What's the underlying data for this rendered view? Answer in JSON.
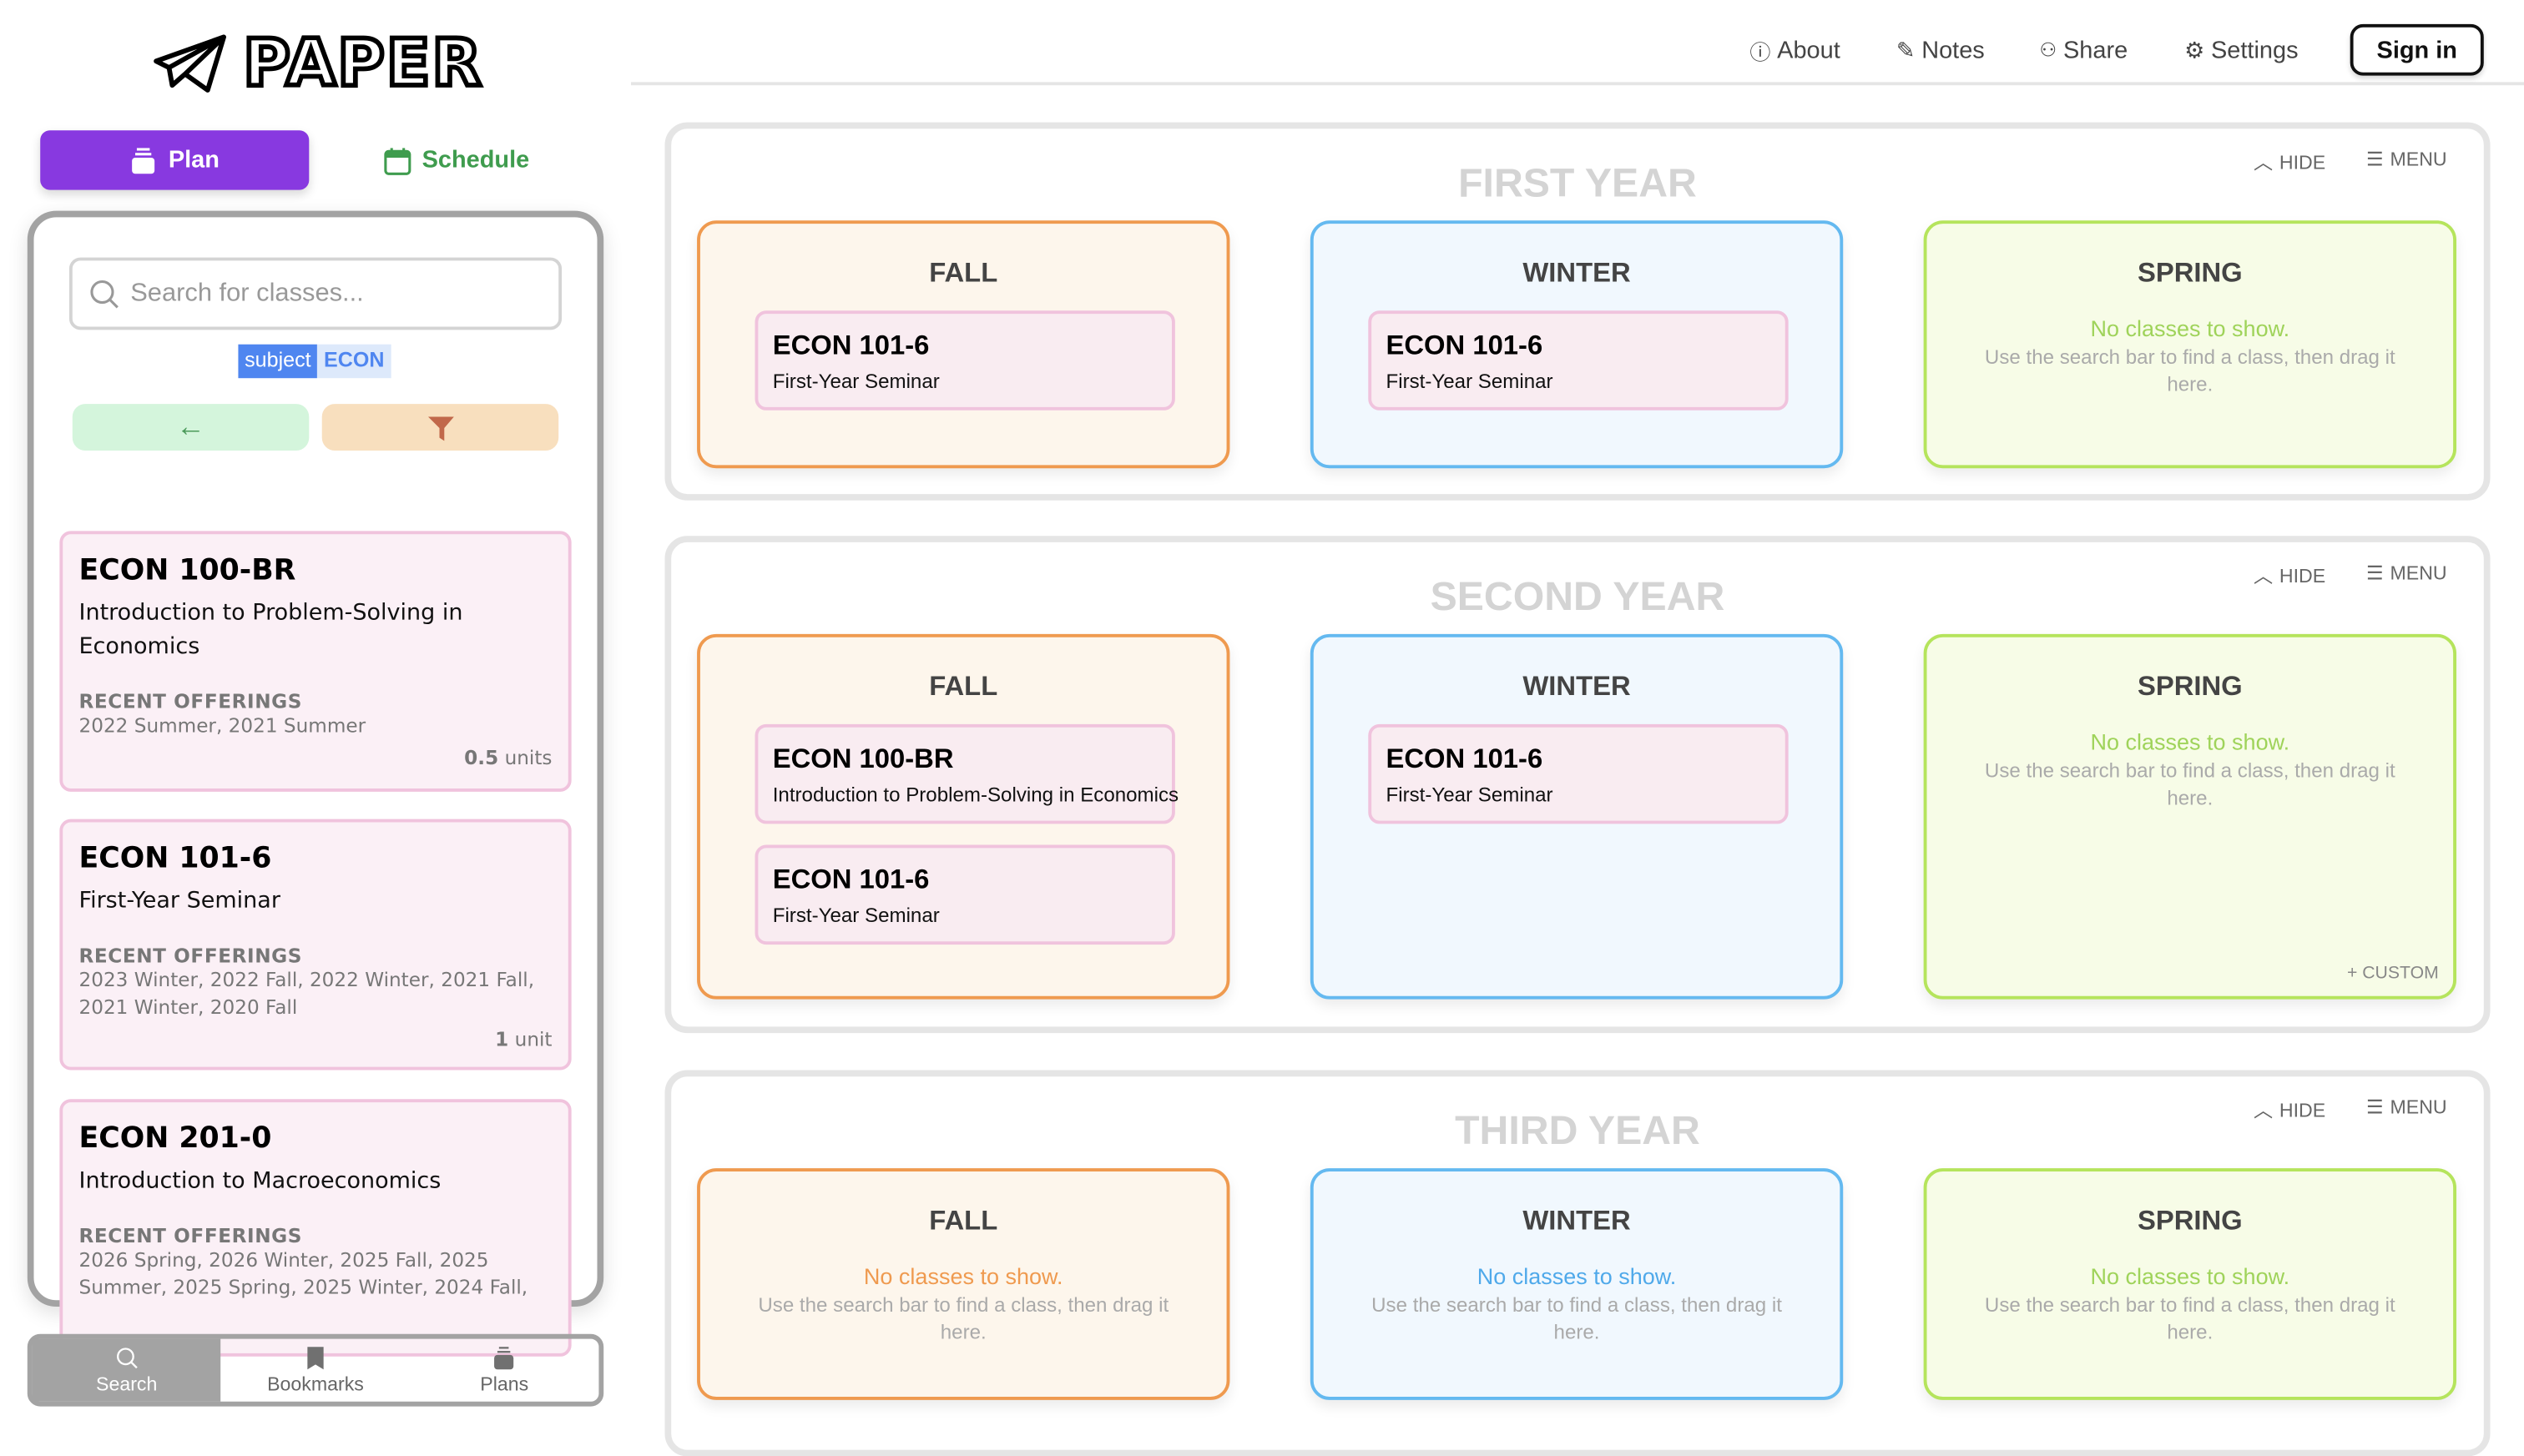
{
  "app": {
    "logo": "PAPER"
  },
  "modes": {
    "plan": "Plan",
    "schedule": "Schedule"
  },
  "colors": {
    "accent": "#8839e0",
    "fall": "#ef9a4f",
    "winter": "#64b9f0",
    "spring": "#b5e45c",
    "class_card": "#f0c3dd"
  },
  "nav": {
    "about": "About",
    "notes": "Notes",
    "share": "Share",
    "settings": "Settings",
    "sign_in": "Sign in"
  },
  "search": {
    "placeholder": "Search for classes...",
    "value": "",
    "filter_tag": {
      "key": "subject",
      "value": "ECON"
    }
  },
  "results": [
    {
      "id": "ECON 100-BR",
      "name": "Introduction to Problem-Solving in Economics",
      "offerings_label": "RECENT OFFERINGS",
      "offerings": "2022 Summer, 2021 Summer",
      "units_num": "0.5",
      "units_label": "units"
    },
    {
      "id": "ECON 101-6",
      "name": "First-Year Seminar",
      "offerings_label": "RECENT OFFERINGS",
      "offerings": "2023 Winter, 2022 Fall, 2022 Winter, 2021 Fall, 2021 Winter, 2020 Fall",
      "units_num": "1",
      "units_label": "unit"
    },
    {
      "id": "ECON 201-0",
      "name": "Introduction to Macroeconomics",
      "offerings_label": "RECENT OFFERINGS",
      "offerings": "2026 Spring, 2026 Winter, 2025 Fall, 2025 Summer, 2025 Spring, 2025 Winter, 2024 Fall,"
    }
  ],
  "bottom_tabs": {
    "search": "Search",
    "bookmarks": "Bookmarks",
    "plans": "Plans"
  },
  "controls": {
    "hide": "HIDE",
    "menu": "MENU",
    "custom": "+ CUSTOM"
  },
  "empty": {
    "title": "No classes to show.",
    "hint": "Use the search bar to find a class, then drag it here."
  },
  "years": [
    {
      "title": "FIRST YEAR",
      "quarters": [
        {
          "name": "FALL",
          "classes": [
            {
              "id": "ECON 101-6",
              "name": "First-Year Seminar"
            }
          ]
        },
        {
          "name": "WINTER",
          "classes": [
            {
              "id": "ECON 101-6",
              "name": "First-Year Seminar"
            }
          ]
        },
        {
          "name": "SPRING",
          "classes": []
        }
      ]
    },
    {
      "title": "SECOND YEAR",
      "quarters": [
        {
          "name": "FALL",
          "classes": [
            {
              "id": "ECON 100-BR",
              "name": "Introduction to Problem-Solving in Economics"
            },
            {
              "id": "ECON 101-6",
              "name": "First-Year Seminar"
            }
          ]
        },
        {
          "name": "WINTER",
          "classes": [
            {
              "id": "ECON 101-6",
              "name": "First-Year Seminar"
            }
          ]
        },
        {
          "name": "SPRING",
          "classes": []
        }
      ]
    },
    {
      "title": "THIRD YEAR",
      "quarters": [
        {
          "name": "FALL",
          "classes": []
        },
        {
          "name": "WINTER",
          "classes": []
        },
        {
          "name": "SPRING",
          "classes": []
        }
      ]
    }
  ]
}
